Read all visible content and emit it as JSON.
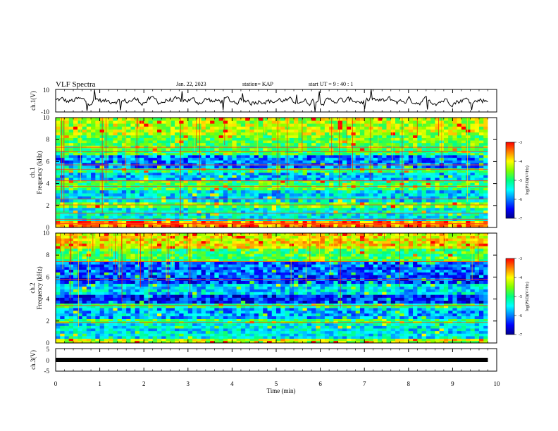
{
  "header": {
    "title": "VLF Spectra",
    "date": "Jan. 22, 2023",
    "station": "station= KAP",
    "start": "start UT =  9 : 40 : 1"
  },
  "colors": {
    "background": "#ffffff",
    "axes": "#000000",
    "colormap": [
      "#00008b",
      "#0000ff",
      "#0080ff",
      "#00ffff",
      "#00ff80",
      "#80ff00",
      "#ffff00",
      "#ff8000",
      "#ff0000",
      "#ffffff"
    ]
  },
  "chart_data": [
    {
      "type": "line",
      "panel": "ch1-waveform",
      "ylabel": "ch.1(V)",
      "ylim": [
        -10,
        10
      ],
      "yticks": [
        "10",
        "-10"
      ],
      "xlim": [
        0,
        10
      ],
      "x_units": "min",
      "data_end": 9.8,
      "baseline": 0,
      "amplitude": 4,
      "series_color": "#000000",
      "description_values": {
        "typical_min": -4,
        "typical_max": 4
      }
    },
    {
      "type": "heatmap",
      "panel": "ch1-spectrogram",
      "ylabel": "ch.1 Frequency (kHz)",
      "ylim": [
        0,
        10
      ],
      "yticks": [
        "0",
        "2",
        "4",
        "6",
        "8",
        "10"
      ],
      "xlim": [
        0,
        10
      ],
      "data_end": 9.8,
      "colorbar": {
        "label": "log(PSD)(V²/Hz)",
        "range": [
          -7,
          -3
        ],
        "ticks": [
          "-3",
          "-4",
          "-5",
          "-6",
          "-7"
        ]
      },
      "levels_by_khz": [
        {
          "f0": 0.0,
          "f1": 0.6,
          "level": -3.5
        },
        {
          "f0": 0.6,
          "f1": 1.8,
          "level": -5.4
        },
        {
          "f0": 1.8,
          "f1": 2.3,
          "level": -4.6
        },
        {
          "f0": 2.3,
          "f1": 3.4,
          "level": -5.6
        },
        {
          "f0": 3.4,
          "f1": 4.3,
          "level": -4.8
        },
        {
          "f0": 4.3,
          "f1": 5.0,
          "level": -5.7
        },
        {
          "f0": 5.0,
          "f1": 5.4,
          "level": -5.0
        },
        {
          "f0": 5.4,
          "f1": 6.6,
          "level": -6.0
        },
        {
          "f0": 6.6,
          "f1": 7.0,
          "level": -4.9
        },
        {
          "f0": 7.0,
          "f1": 8.4,
          "level": -4.7
        },
        {
          "f0": 8.4,
          "f1": 10.0,
          "level": -4.3
        }
      ],
      "lines_khz": [
        0.35,
        0.75,
        1.3,
        2.05,
        2.6,
        3.75,
        4.25,
        5.3,
        5.7,
        6.9,
        7.3
      ]
    },
    {
      "type": "heatmap",
      "panel": "ch2-spectrogram",
      "ylabel": "ch.2 Frequency (kHz)",
      "ylim": [
        0,
        10
      ],
      "yticks": [
        "0",
        "2",
        "4",
        "6",
        "8",
        "10"
      ],
      "xlim": [
        0,
        10
      ],
      "data_end": 9.8,
      "colorbar": {
        "label": "log(PSD)(V²/Hz)",
        "range": [
          -7,
          -3
        ],
        "ticks": [
          "-3",
          "-4",
          "-5",
          "-6",
          "-7"
        ]
      },
      "levels_by_khz": [
        {
          "f0": 0.0,
          "f1": 0.4,
          "level": -4.3
        },
        {
          "f0": 0.4,
          "f1": 1.8,
          "level": -5.5
        },
        {
          "f0": 1.8,
          "f1": 2.2,
          "level": -4.9
        },
        {
          "f0": 2.2,
          "f1": 3.2,
          "level": -5.8
        },
        {
          "f0": 3.2,
          "f1": 3.6,
          "level": -5.0
        },
        {
          "f0": 3.6,
          "f1": 4.4,
          "level": -6.4
        },
        {
          "f0": 4.4,
          "f1": 5.4,
          "level": -5.6
        },
        {
          "f0": 5.4,
          "f1": 6.2,
          "level": -6.3
        },
        {
          "f0": 6.2,
          "f1": 7.4,
          "level": -6.1
        },
        {
          "f0": 7.4,
          "f1": 8.6,
          "level": -4.8
        },
        {
          "f0": 8.6,
          "f1": 10.0,
          "level": -4.0
        }
      ],
      "lines_khz": [
        1.9,
        3.4,
        5.8,
        7.4
      ]
    },
    {
      "type": "line",
      "panel": "ch3-waveform",
      "ylabel": "ch.3(V)",
      "ylim": [
        -5,
        5
      ],
      "yticks": [
        "5",
        "0",
        "-5"
      ],
      "xlim": [
        0,
        10
      ],
      "data_end": 9.8,
      "value": 0,
      "series_color": "#000000"
    }
  ],
  "x_axis": {
    "label": "Time (min)",
    "ticks": [
      "0",
      "1",
      "2",
      "3",
      "4",
      "5",
      "6",
      "7",
      "8",
      "9",
      "10"
    ]
  }
}
